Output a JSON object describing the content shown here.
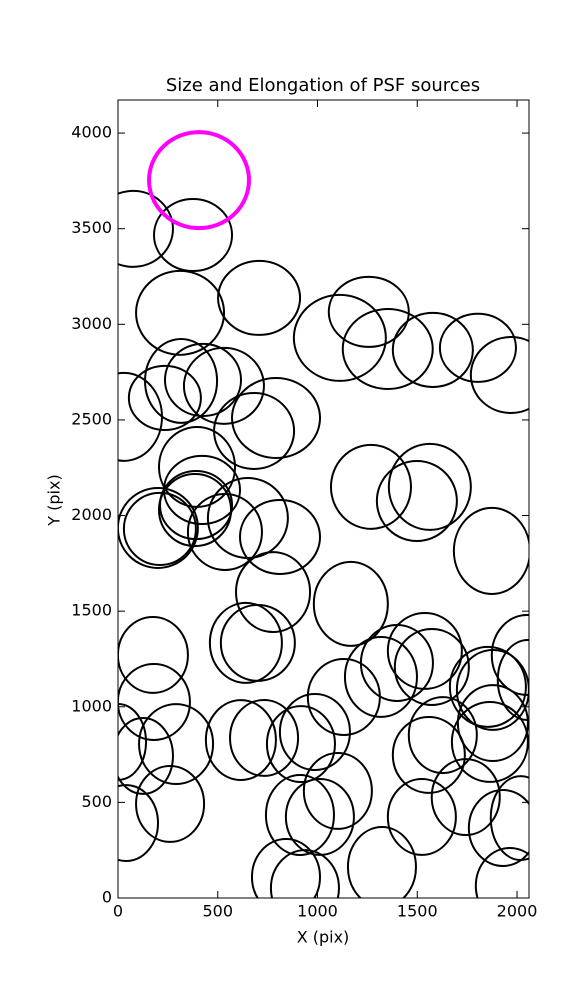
{
  "chart_data": {
    "type": "ellipse",
    "title": "Size and Elongation of PSF sources",
    "x_label": "X (pix)",
    "y_label": "Y (pix)",
    "xlim": [
      0,
      2060
    ],
    "ylim": [
      0,
      4173
    ],
    "xticks": [
      0,
      500,
      1000,
      1500,
      2000
    ],
    "yticks": [
      0,
      500,
      1000,
      1500,
      2000,
      2500,
      3000,
      3500,
      4000
    ],
    "series": [
      {
        "color": "#000000",
        "line_width": 2,
        "x": [
          75,
          376,
          311,
          707,
          1112,
          1257,
          1352,
          1578,
          1804,
          1969,
          30,
          235,
          316,
          426,
          531,
          792,
          682,
          396,
          421,
          391,
          386,
          210,
          200,
          536,
          651,
          812,
          1268,
          1498,
          1563,
          1874,
          777,
          701,
          641,
          1167,
          175,
          180,
          1318,
          1132,
          1398,
          1538,
          1573,
          1854,
          1879,
          2049,
          2054,
          0,
          125,
          291,
          616,
          732,
          917,
          987,
          1628,
          1558,
          1864,
          1879,
          40,
          261,
          912,
          1012,
          1102,
          1523,
          1743,
          1929,
          2019,
          842,
          937,
          1323,
          1964
        ],
        "y": [
          3499,
          3467,
          3060,
          3138,
          2929,
          3065,
          2871,
          2866,
          2877,
          2735,
          2516,
          2615,
          2704,
          2709,
          2678,
          2510,
          2442,
          2254,
          2134,
          2055,
          2029,
          1930,
          1935,
          1914,
          1987,
          1888,
          2150,
          2076,
          2150,
          1815,
          1600,
          1334,
          1334,
          1538,
          1271,
          1025,
          1156,
          1051,
          1229,
          1292,
          1208,
          1104,
          1088,
          1271,
          1140,
          816,
          743,
          805,
          826,
          837,
          805,
          868,
          852,
          748,
          816,
          915,
          392,
          492,
          434,
          424,
          560,
          424,
          528,
          366,
          418,
          110,
          52,
          162,
          63
        ],
        "width": [
          401,
          391,
          441,
          411,
          461,
          401,
          451,
          401,
          381,
          401,
          381,
          361,
          361,
          381,
          401,
          441,
          401,
          381,
          381,
          361,
          361,
          361,
          401,
          371,
          401,
          401,
          401,
          401,
          411,
          381,
          371,
          371,
          361,
          371,
          351,
          361,
          361,
          361,
          361,
          371,
          371,
          381,
          361,
          351,
          301,
          281,
          301,
          371,
          351,
          341,
          341,
          351,
          341,
          361,
          381,
          351,
          321,
          341,
          341,
          341,
          341,
          341,
          341,
          341,
          301,
          341,
          341,
          341,
          341
        ],
        "height": [
          397,
          377,
          439,
          387,
          450,
          366,
          418,
          387,
          356,
          397,
          460,
          335,
          439,
          377,
          397,
          418,
          397,
          418,
          356,
          356,
          377,
          377,
          418,
          397,
          418,
          387,
          439,
          418,
          450,
          450,
          418,
          397,
          418,
          439,
          397,
          397,
          418,
          397,
          397,
          397,
          397,
          418,
          418,
          418,
          418,
          397,
          397,
          418,
          418,
          397,
          397,
          397,
          397,
          397,
          418,
          397,
          397,
          397,
          418,
          397,
          397,
          397,
          397,
          397,
          439,
          397,
          397,
          418,
          397
        ]
      },
      {
        "color": "#ff00ff",
        "line_width": 4,
        "x": [
          406
        ],
        "y": [
          3754
        ],
        "width": [
          501
        ],
        "height": [
          502
        ]
      }
    ]
  }
}
